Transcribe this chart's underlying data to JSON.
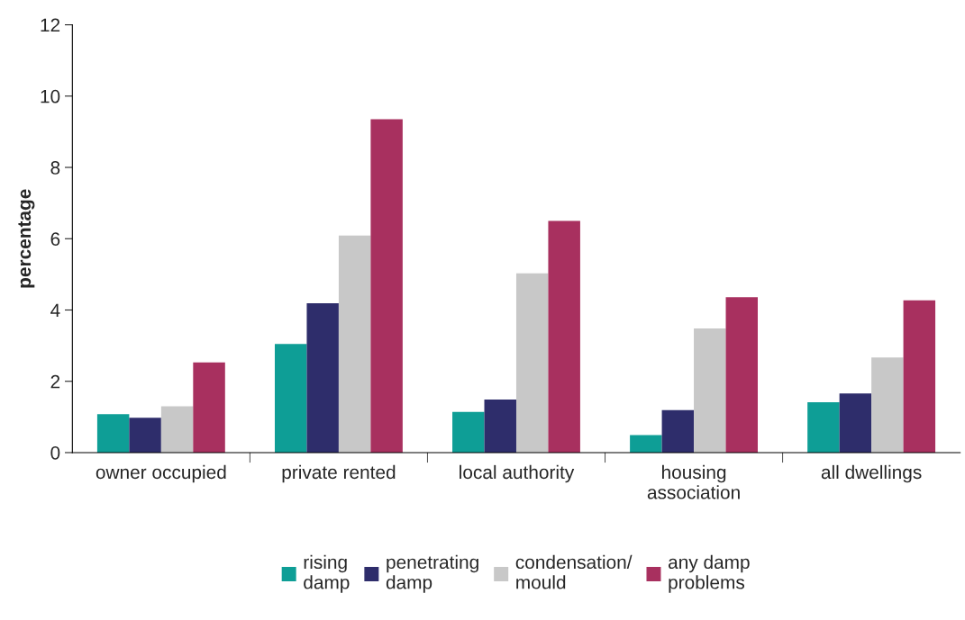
{
  "chart_data": {
    "type": "bar",
    "ylabel": "percentage",
    "categories": [
      "owner occupied",
      "private rented",
      "local authority",
      "housing\nassociation",
      "all dwellings"
    ],
    "series": [
      {
        "name": "rising\ndamp",
        "color": "#0e9e96",
        "values": [
          1.08,
          3.05,
          1.14,
          0.49,
          1.41
        ]
      },
      {
        "name": "penetrating\ndamp",
        "color": "#2e2d6b",
        "values": [
          0.98,
          4.19,
          1.49,
          1.19,
          1.66
        ]
      },
      {
        "name": "condensation/\nmould",
        "color": "#c8c8c8",
        "values": [
          1.3,
          6.09,
          5.03,
          3.48,
          2.67
        ]
      },
      {
        "name": "any damp\nproblems",
        "color": "#a8305f",
        "values": [
          2.53,
          9.35,
          6.5,
          4.36,
          4.27
        ]
      }
    ],
    "ylim": [
      0,
      12
    ],
    "yticks": [
      0,
      2,
      4,
      6,
      8,
      10,
      12
    ],
    "grid": false,
    "legend": "bottom"
  }
}
